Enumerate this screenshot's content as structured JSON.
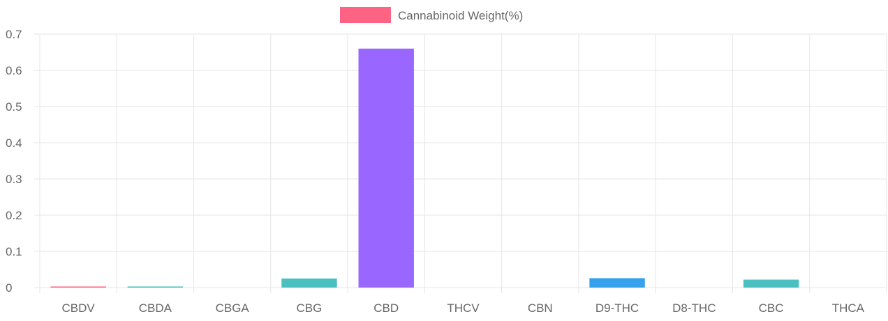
{
  "chart_data": {
    "type": "bar",
    "categories": [
      "CBDV",
      "CBDA",
      "CBGA",
      "CBG",
      "CBD",
      "THCV",
      "CBN",
      "D9-THC",
      "D8-THC",
      "CBC",
      "THCA"
    ],
    "series": [
      {
        "name": "Cannabinoid Weight(%)",
        "values": [
          0.003,
          0.003,
          0,
          0.025,
          0.66,
          0,
          0,
          0.026,
          0,
          0.022,
          0
        ]
      }
    ],
    "bar_colors": [
      "#ff6384",
      "#4bc0c0",
      "#ffcd56",
      "#4bc0c0",
      "#9966ff",
      "#ff9f40",
      "#ff6384",
      "#36a2eb",
      "#ffcd56",
      "#4bc0c0",
      "#c9cbcf"
    ],
    "legend": {
      "label": "Cannabinoid Weight(%)",
      "color": "#ff6384",
      "position": "top"
    },
    "y_ticks": [
      "0",
      "0.1",
      "0.2",
      "0.3",
      "0.4",
      "0.5",
      "0.6",
      "0.7"
    ],
    "ylim": [
      0,
      0.7
    ],
    "grid": true,
    "grid_color": "#e5e5e5",
    "text_color": "#666666"
  }
}
